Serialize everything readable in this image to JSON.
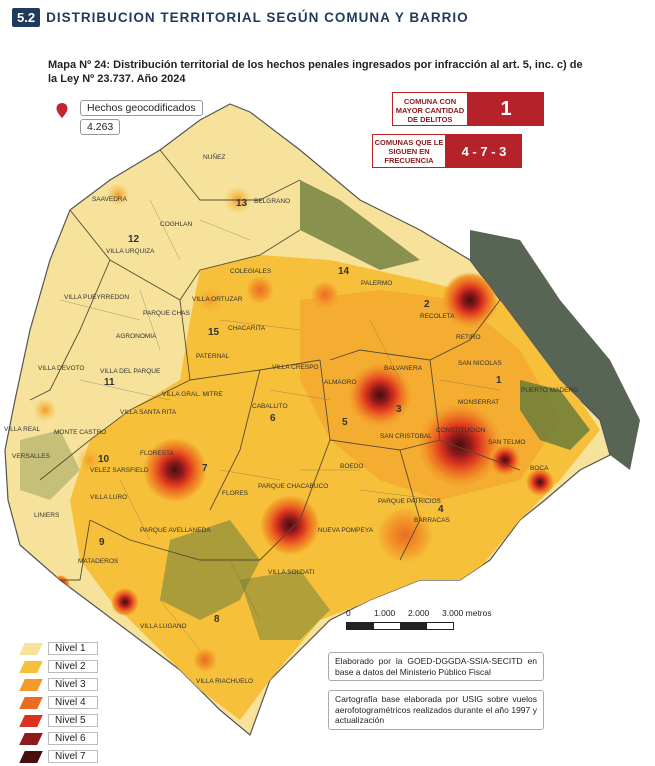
{
  "header": {
    "section_number": "5.2",
    "section_title": "DISTRIBUCION TERRITORIAL SEGÚN COMUNA Y BARRIO"
  },
  "map_title": "Mapa Nº 24: Distribución territorial de los hechos penales ingresados por infracción al art. 5, inc. c) de la Ley Nº 23.737. Año 2024",
  "geocoded": {
    "label": "Hechos geocodificados",
    "value": "4.263",
    "icon": "location-pin-icon"
  },
  "highlight_primary": {
    "label": "COMUNA CON MAYOR CANTIDAD DE DELITOS",
    "value": "1"
  },
  "highlight_secondary": {
    "label": "COMUNAS QUE LE SIGUEN EN FRECUENCIA",
    "value": "4 - 7 - 3"
  },
  "legend": [
    {
      "label": "Nivel 1",
      "color": "#f7e29c"
    },
    {
      "label": "Nivel 2",
      "color": "#f6c03a"
    },
    {
      "label": "Nivel 3",
      "color": "#f29a2a"
    },
    {
      "label": "Nivel 4",
      "color": "#ec6b23"
    },
    {
      "label": "Nivel 5",
      "color": "#d9331f"
    },
    {
      "label": "Nivel 6",
      "color": "#8e1b1b"
    },
    {
      "label": "Nivel 7",
      "color": "#4a0d0d"
    }
  ],
  "scale": {
    "ticks": [
      "0",
      "1.000",
      "2.000",
      "3.000 metros"
    ]
  },
  "notes": {
    "source": "Elaborado por la GOED-DGGDA-SSIA-SECITD en base a datos del Ministerio Público Fiscal",
    "cartography": "Cartografía base elaborada por USIG sobre vuelos aerofotogramétricos realizados durante el año 1997 y actualización"
  },
  "comunas": [
    "1",
    "2",
    "3",
    "4",
    "5",
    "6",
    "7",
    "8",
    "9",
    "10",
    "11",
    "12",
    "13",
    "14",
    "15"
  ],
  "barrios": [
    "NUÑEZ",
    "SAAVEDRA",
    "BELGRANO",
    "COGHLAN",
    "VILLA URQUIZA",
    "COLEGIALES",
    "PALERMO",
    "VILLA PUEYRREDON",
    "VILLA ORTUZAR",
    "PARQUE CHAS",
    "AGRONOMIA",
    "CHACARITA",
    "RECOLETA",
    "RETIRO",
    "PATERNAL",
    "VILLA CRESPO",
    "VILLA DEVOTO",
    "VILLA DEL PARQUE",
    "VILLA GRAL. MITRE",
    "ALMAGRO",
    "BALVANERA",
    "SAN NICOLAS",
    "PUERTO MADERO",
    "MONSERRAT",
    "CABALLITO",
    "VILLA SANTA RITA",
    "VILLA REAL",
    "MONTE CASTRO",
    "SAN CRISTOBAL",
    "CONSTITUCION",
    "SAN TELMO",
    "VERSALLES",
    "FLORESTA",
    "VELEZ SARSFIELD",
    "BOEDO",
    "BOCA",
    "VILLA LURO",
    "FLORES",
    "PARQUE CHACABUCO",
    "LINIERS",
    "PARQUE PATRICIOS",
    "PARQUE AVELLANEDA",
    "NUEVA POMPEYA",
    "BARRACAS",
    "MATADEROS",
    "VILLA SOLDATI",
    "VILLA LUGANO",
    "VILLA RIACHUELO"
  ]
}
